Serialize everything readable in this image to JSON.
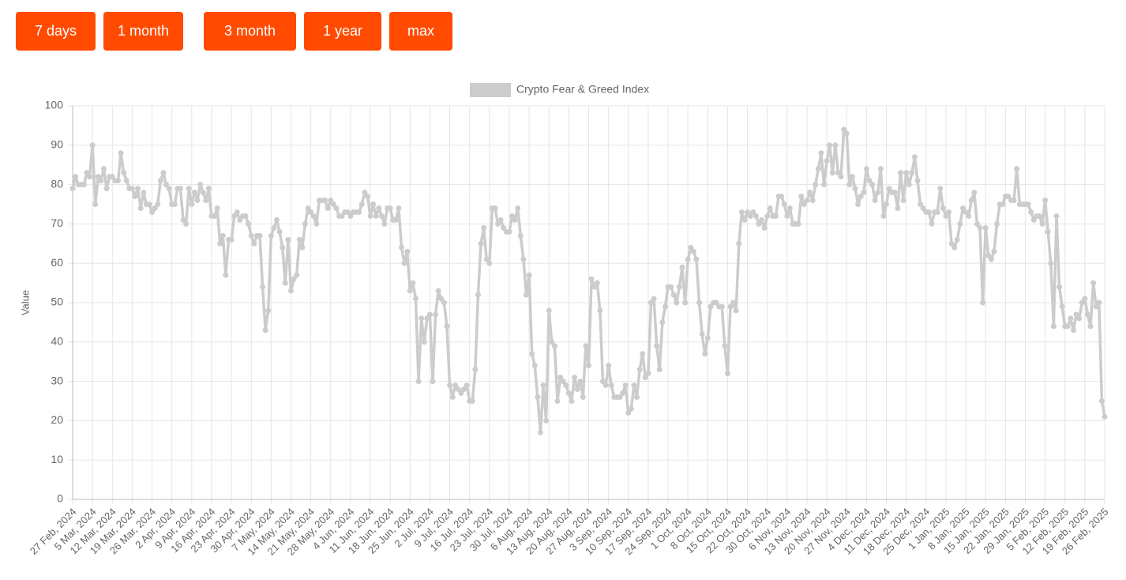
{
  "buttons": [
    "7 days",
    "1 month",
    "3 month",
    "1 year",
    "max"
  ],
  "chart_data": {
    "type": "line",
    "y_label": "Value",
    "ylim": [
      0,
      100
    ],
    "yticks": [
      0,
      10,
      20,
      30,
      40,
      50,
      60,
      70,
      80,
      90,
      100
    ],
    "grid": true,
    "legend": "top",
    "categories": [
      "27 Feb, 2024",
      null,
      null,
      null,
      null,
      null,
      null,
      "5 Mar, 2024",
      null,
      null,
      null,
      null,
      null,
      null,
      "12 Mar, 2024",
      null,
      null,
      null,
      null,
      null,
      null,
      "19 Mar, 2024",
      null,
      null,
      null,
      null,
      null,
      null,
      "26 Mar, 2024",
      null,
      null,
      null,
      null,
      null,
      null,
      "2 Apr, 2024",
      null,
      null,
      null,
      null,
      null,
      null,
      "9 Apr, 2024",
      null,
      null,
      null,
      null,
      null,
      null,
      "16 Apr, 2024",
      null,
      null,
      null,
      null,
      null,
      null,
      "23 Apr, 2024",
      null,
      null,
      null,
      null,
      null,
      null,
      "30 Apr, 2024",
      null,
      null,
      null,
      null,
      null,
      null,
      "7 May, 2024",
      null,
      null,
      null,
      null,
      null,
      null,
      "14 May, 2024",
      null,
      null,
      null,
      null,
      null,
      null,
      "21 May, 2024",
      null,
      null,
      null,
      null,
      null,
      null,
      "28 May, 2024",
      null,
      null,
      null,
      null,
      null,
      null,
      "4 Jun, 2024",
      null,
      null,
      null,
      null,
      null,
      null,
      "11 Jun, 2024",
      null,
      null,
      null,
      null,
      null,
      null,
      "18 Jun, 2024",
      null,
      null,
      null,
      null,
      null,
      null,
      "25 Jun, 2024",
      null,
      null,
      null,
      null,
      null,
      null,
      "2 Jul, 2024",
      null,
      null,
      null,
      null,
      null,
      null,
      "9 Jul, 2024",
      null,
      null,
      null,
      null,
      null,
      null,
      "16 Jul, 2024",
      null,
      null,
      null,
      null,
      null,
      null,
      "23 Jul, 2024",
      null,
      null,
      null,
      null,
      null,
      null,
      "30 Jul, 2024",
      null,
      null,
      null,
      null,
      null,
      null,
      "6 Aug, 2024",
      null,
      null,
      null,
      null,
      null,
      null,
      "13 Aug, 2024",
      null,
      null,
      null,
      null,
      null,
      null,
      "20 Aug, 2024",
      null,
      null,
      null,
      null,
      null,
      null,
      "27 Aug, 2024",
      null,
      null,
      null,
      null,
      null,
      null,
      "3 Sep, 2024",
      null,
      null,
      null,
      null,
      null,
      null,
      "10 Sep, 2024",
      null,
      null,
      null,
      null,
      null,
      null,
      "17 Sep, 2024",
      null,
      null,
      null,
      null,
      null,
      null,
      "24 Sep, 2024",
      null,
      null,
      null,
      null,
      null,
      null,
      "1 Oct, 2024",
      null,
      null,
      null,
      null,
      null,
      null,
      "8 Oct, 2024",
      null,
      null,
      null,
      null,
      null,
      null,
      "15 Oct, 2024",
      null,
      null,
      null,
      null,
      null,
      null,
      "22 Oct, 2024",
      null,
      null,
      null,
      null,
      null,
      null,
      "30 Oct, 2024",
      null,
      null,
      null,
      null,
      null,
      null,
      "6 Nov, 2024",
      null,
      null,
      null,
      null,
      null,
      null,
      "13 Nov, 2024",
      null,
      null,
      null,
      null,
      null,
      null,
      "20 Nov, 2024",
      null,
      null,
      null,
      null,
      null,
      null,
      "27 Nov, 2024",
      null,
      null,
      null,
      null,
      null,
      null,
      "4 Dec, 2024",
      null,
      null,
      null,
      null,
      null,
      null,
      "11 Dec, 2024",
      null,
      null,
      null,
      null,
      null,
      null,
      "18 Dec, 2024",
      null,
      null,
      null,
      null,
      null,
      null,
      "25 Dec, 2024",
      null,
      null,
      null,
      null,
      null,
      null,
      "1 Jan, 2025",
      null,
      null,
      null,
      null,
      null,
      null,
      "8 Jan, 2025",
      null,
      null,
      null,
      null,
      null,
      null,
      "15 Jan, 2025",
      null,
      null,
      null,
      null,
      null,
      null,
      "22 Jan, 2025",
      null,
      null,
      null,
      null,
      null,
      null,
      "29 Jan, 2025",
      null,
      null,
      null,
      null,
      null,
      null,
      "5 Feb, 2025",
      null,
      null,
      null,
      null,
      null,
      null,
      "12 Feb, 2025",
      null,
      null,
      null,
      null,
      null,
      null,
      "19 Feb, 2025",
      null,
      null,
      null,
      null,
      null,
      null,
      "26 Feb, 2025"
    ],
    "series": [
      {
        "name": "Crypto Fear & Greed Index",
        "color": "#cccccc",
        "values": [
          79,
          82,
          80,
          80,
          80,
          83,
          82,
          90,
          75,
          82,
          81,
          84,
          79,
          82,
          82,
          81,
          81,
          88,
          83,
          81,
          79,
          79,
          77,
          79,
          74,
          78,
          75,
          75,
          73,
          74,
          75,
          81,
          83,
          80,
          79,
          75,
          75,
          79,
          79,
          71,
          70,
          79,
          75,
          78,
          76,
          80,
          78,
          76,
          79,
          72,
          72,
          74,
          65,
          67,
          57,
          66,
          66,
          72,
          73,
          71,
          72,
          72,
          70,
          67,
          65,
          67,
          67,
          54,
          43,
          48,
          67,
          69,
          71,
          68,
          64,
          55,
          66,
          53,
          56,
          57,
          66,
          64,
          70,
          74,
          73,
          72,
          70,
          76,
          76,
          76,
          74,
          76,
          75,
          74,
          72,
          72,
          73,
          73,
          72,
          73,
          73,
          73,
          75,
          78,
          77,
          72,
          75,
          72,
          74,
          72,
          70,
          74,
          74,
          71,
          71,
          74,
          64,
          60,
          63,
          53,
          55,
          51,
          30,
          46,
          40,
          46,
          47,
          30,
          47,
          53,
          51,
          50,
          44,
          29,
          26,
          29,
          28,
          27,
          28,
          29,
          25,
          25,
          33,
          52,
          65,
          69,
          61,
          60,
          74,
          74,
          70,
          71,
          69,
          68,
          68,
          72,
          71,
          74,
          67,
          61,
          52,
          57,
          37,
          34,
          26,
          17,
          29,
          20,
          48,
          40,
          39,
          25,
          31,
          30,
          29,
          27,
          25,
          31,
          28,
          30,
          26,
          39,
          34,
          56,
          54,
          55,
          48,
          30,
          29,
          34,
          29,
          26,
          26,
          26,
          27,
          29,
          22,
          23,
          29,
          26,
          33,
          37,
          31,
          32,
          50,
          51,
          39,
          33,
          45,
          49,
          54,
          54,
          52,
          50,
          54,
          59,
          50,
          61,
          64,
          63,
          61,
          50,
          42,
          37,
          41,
          49,
          50,
          50,
          49,
          49,
          39,
          32,
          49,
          50,
          48,
          65,
          73,
          71,
          73,
          72,
          73,
          72,
          70,
          71,
          69,
          72,
          74,
          72,
          72,
          77,
          77,
          75,
          72,
          74,
          70,
          70,
          70,
          77,
          75,
          76,
          78,
          76,
          80,
          84,
          88,
          80,
          86,
          90,
          83,
          90,
          83,
          82,
          94,
          93,
          80,
          82,
          79,
          75,
          77,
          78,
          84,
          81,
          80,
          76,
          78,
          84,
          72,
          75,
          79,
          78,
          78,
          74,
          83,
          76,
          83,
          80,
          83,
          87,
          81,
          75,
          74,
          73,
          73,
          70,
          73,
          73,
          79,
          74,
          72,
          73,
          65,
          64,
          66,
          70,
          74,
          73,
          72,
          76,
          78,
          70,
          69,
          50,
          69,
          62,
          61,
          63,
          70,
          75,
          75,
          77,
          77,
          76,
          76,
          84,
          75,
          75,
          75,
          75,
          73,
          71,
          72,
          72,
          70,
          76,
          68,
          60,
          44,
          72,
          54,
          49,
          44,
          44,
          46,
          43,
          47,
          46,
          50,
          51,
          47,
          44,
          55,
          49,
          50,
          25,
          21
        ]
      }
    ]
  }
}
